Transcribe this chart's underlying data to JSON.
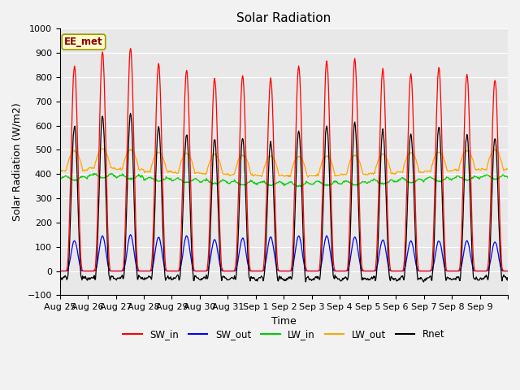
{
  "title": "Solar Radiation",
  "xlabel": "Time",
  "ylabel": "Solar Radiation (W/m2)",
  "ylim": [
    -100,
    1000
  ],
  "yticks": [
    -100,
    0,
    100,
    200,
    300,
    400,
    500,
    600,
    700,
    800,
    900,
    1000
  ],
  "x_labels": [
    "Aug 25",
    "Aug 26",
    "Aug 27",
    "Aug 28",
    "Aug 29",
    "Aug 30",
    "Aug 31",
    "Sep 1",
    "Sep 2",
    "Sep 3",
    "Sep 4",
    "Sep 5",
    "Sep 6",
    "Sep 7",
    "Sep 8",
    "Sep 9"
  ],
  "annotation": "EE_met",
  "annotation_color": "#8B0000",
  "annotation_bg": "#FFFACD",
  "colors": {
    "SW_in": "#FF0000",
    "SW_out": "#0000FF",
    "LW_in": "#00CC00",
    "LW_out": "#FFA500",
    "Rnet": "#000000"
  },
  "plot_bg": "#E8E8E8",
  "fig_bg": "#F2F2F2",
  "grid_color": "#FFFFFF",
  "title_fontsize": 11,
  "label_fontsize": 9,
  "tick_fontsize": 8,
  "n_days": 16,
  "sw_in_peaks": [
    845,
    905,
    920,
    855,
    830,
    795,
    805,
    795,
    845,
    870,
    875,
    835,
    815,
    840,
    810,
    790
  ],
  "sw_out_peaks": [
    125,
    145,
    150,
    140,
    145,
    130,
    135,
    140,
    145,
    145,
    140,
    130,
    125,
    125,
    125,
    120
  ],
  "lw_in_base": [
    380,
    390,
    385,
    375,
    370,
    365,
    360,
    358,
    355,
    358,
    360,
    365,
    370,
    375,
    380,
    385
  ],
  "lw_out_base": [
    415,
    425,
    420,
    410,
    405,
    400,
    398,
    395,
    393,
    395,
    398,
    402,
    408,
    412,
    418,
    420
  ]
}
